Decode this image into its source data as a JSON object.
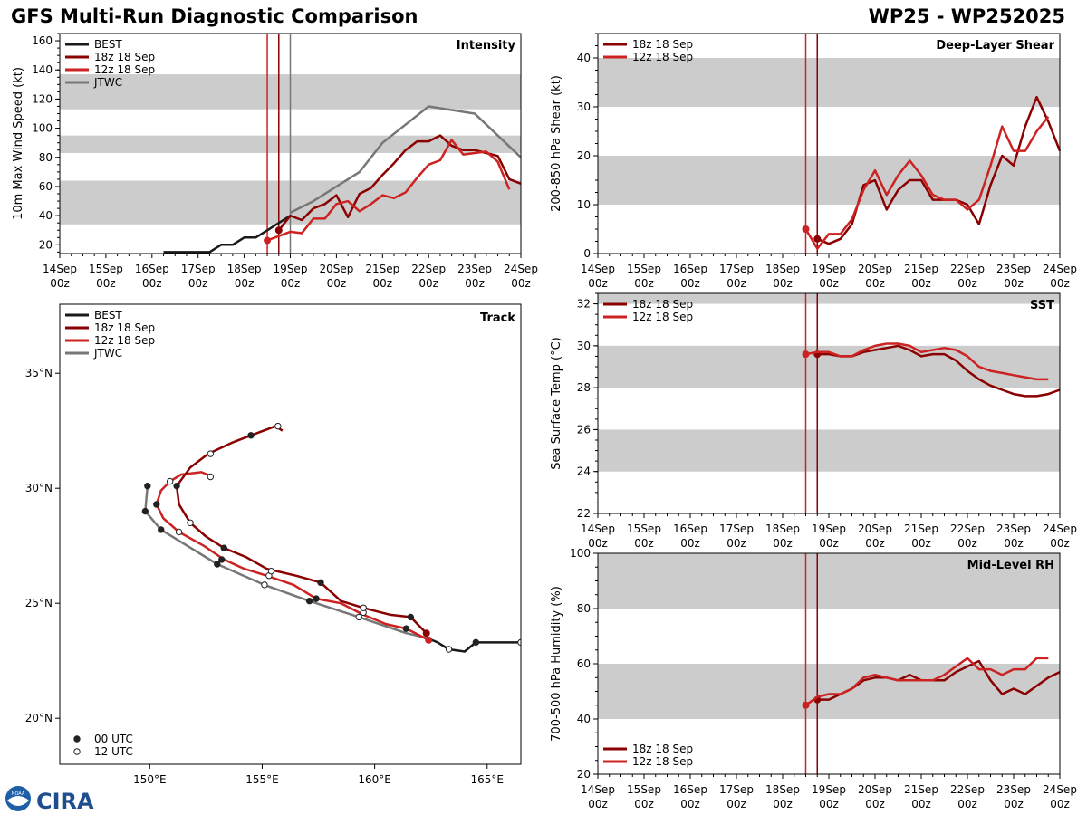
{
  "header": {
    "title": "GFS Multi-Run Diagnostic Comparison",
    "storm": "WP25 - WP252025"
  },
  "logo": {
    "ring_text": "NOAA",
    "wordmark": "CIRA"
  },
  "colors": {
    "best": "#1a1a1a",
    "run18": "#8b0000",
    "run12": "#cc2222",
    "jtwc": "#777777",
    "band": "#cccccc"
  },
  "time_axis": {
    "range": [
      0,
      10
    ],
    "ticks": [
      {
        "day": "14Sep",
        "hour": "00z"
      },
      {
        "day": "15Sep",
        "hour": "00z"
      },
      {
        "day": "16Sep",
        "hour": "00z"
      },
      {
        "day": "17Sep",
        "hour": "00z"
      },
      {
        "day": "18Sep",
        "hour": "00z"
      },
      {
        "day": "19Sep",
        "hour": "00z"
      },
      {
        "day": "20Sep",
        "hour": "00z"
      },
      {
        "day": "21Sep",
        "hour": "00z"
      },
      {
        "day": "22Sep",
        "hour": "00z"
      },
      {
        "day": "23Sep",
        "hour": "00z"
      },
      {
        "day": "24Sep",
        "hour": "00z"
      }
    ]
  },
  "chart_data": [
    {
      "id": "intensity",
      "type": "line",
      "title": "Intensity",
      "ylabel": "10m Max Wind Speed (kt)",
      "ylim": [
        14,
        165
      ],
      "yticks": [
        20,
        40,
        60,
        80,
        100,
        120,
        140,
        160
      ],
      "bands": [
        [
          34,
          64
        ],
        [
          83,
          95
        ],
        [
          113,
          137
        ]
      ],
      "vlines": [
        {
          "x": 4.5,
          "series": "run12"
        },
        {
          "x": 4.75,
          "series": "run18"
        },
        {
          "x": 5.0,
          "series": "jtwc"
        }
      ],
      "legend": [
        "BEST",
        "18z 18 Sep",
        "12z 18 Sep",
        "JTWC"
      ],
      "series": [
        {
          "name": "BEST",
          "key": "best",
          "x": [
            2.25,
            2.5,
            2.75,
            3.0,
            3.25,
            3.5,
            3.75,
            4.0,
            4.25,
            4.5,
            4.75,
            5.0
          ],
          "y": [
            15,
            15,
            15,
            15,
            15,
            20,
            20,
            25,
            25,
            30,
            35,
            40
          ]
        },
        {
          "name": "18z 18 Sep",
          "key": "run18",
          "x": [
            4.75,
            5.0,
            5.25,
            5.5,
            5.75,
            6.0,
            6.25,
            6.5,
            6.75,
            7.0,
            7.25,
            7.5,
            7.75,
            8.0,
            8.25,
            8.5,
            8.75,
            9.0,
            9.25,
            9.5,
            9.75,
            10.0
          ],
          "y": [
            30,
            40,
            37,
            45,
            48,
            54,
            39,
            55,
            59,
            68,
            76,
            85,
            91,
            91,
            95,
            88,
            85,
            85,
            83,
            81,
            65,
            62
          ],
          "marker": 0
        },
        {
          "name": "12z 18 Sep",
          "key": "run12",
          "x": [
            4.5,
            4.75,
            5.0,
            5.25,
            5.5,
            5.75,
            6.0,
            6.25,
            6.5,
            6.75,
            7.0,
            7.25,
            7.5,
            7.75,
            8.0,
            8.25,
            8.5,
            8.75,
            9.0,
            9.25,
            9.5,
            9.75
          ],
          "y": [
            23,
            26,
            29,
            28,
            38,
            38,
            48,
            50,
            43,
            48,
            54,
            52,
            56,
            66,
            75,
            78,
            92,
            82,
            83,
            84,
            77,
            58
          ],
          "marker": 0
        },
        {
          "name": "JTWC",
          "key": "jtwc",
          "x": [
            5.0,
            5.5,
            6.5,
            7.0,
            8.0,
            9.0,
            10.0
          ],
          "y": [
            42,
            50,
            70,
            90,
            115,
            110,
            80
          ]
        }
      ]
    },
    {
      "id": "shear",
      "type": "line",
      "title": "Deep-Layer Shear",
      "ylabel": "200-850 hPa Shear (kt)",
      "ylim": [
        0,
        45
      ],
      "yticks": [
        0,
        10,
        20,
        30,
        40
      ],
      "bands": [
        [
          10,
          20
        ],
        [
          30,
          40
        ]
      ],
      "vlines": [
        {
          "x": 4.5,
          "series": "run12"
        },
        {
          "x": 4.75,
          "series": "run18"
        }
      ],
      "legend": [
        "18z 18 Sep",
        "12z 18 Sep"
      ],
      "series": [
        {
          "name": "18z 18 Sep",
          "key": "run18",
          "x": [
            4.75,
            5.0,
            5.25,
            5.5,
            5.75,
            6.0,
            6.25,
            6.5,
            6.75,
            7.0,
            7.25,
            7.5,
            7.75,
            8.0,
            8.25,
            8.5,
            8.75,
            9.0,
            9.25,
            9.5,
            9.75,
            10.0
          ],
          "y": [
            3,
            2,
            3,
            6,
            14,
            15,
            9,
            13,
            15,
            15,
            11,
            11,
            11,
            10,
            6,
            14,
            20,
            18,
            26,
            32,
            27,
            21
          ],
          "marker": 0
        },
        {
          "name": "12z 18 Sep",
          "key": "run12",
          "x": [
            4.5,
            4.75,
            5.0,
            5.25,
            5.5,
            5.75,
            6.0,
            6.25,
            6.5,
            6.75,
            7.0,
            7.25,
            7.5,
            7.75,
            8.0,
            8.25,
            8.5,
            8.75,
            9.0,
            9.25,
            9.5,
            9.75
          ],
          "y": [
            5,
            1,
            4,
            4,
            7,
            13,
            17,
            12,
            16,
            19,
            16,
            12,
            11,
            11,
            9,
            11,
            18,
            26,
            21,
            21,
            25,
            28
          ],
          "marker": 0
        }
      ]
    },
    {
      "id": "sst",
      "type": "line",
      "title": "SST",
      "ylabel": "Sea Surface Temp (°C)",
      "ylim": [
        22,
        32.5
      ],
      "yticks": [
        22,
        24,
        26,
        28,
        30,
        32
      ],
      "bands": [
        [
          24,
          26
        ],
        [
          28,
          30
        ],
        [
          32,
          32.5
        ]
      ],
      "vlines": [
        {
          "x": 4.5,
          "series": "run12"
        },
        {
          "x": 4.75,
          "series": "run18"
        }
      ],
      "legend": [
        "18z 18 Sep",
        "12z 18 Sep"
      ],
      "series": [
        {
          "name": "18z 18 Sep",
          "key": "run18",
          "x": [
            4.75,
            5.0,
            5.25,
            5.5,
            5.75,
            6.0,
            6.25,
            6.5,
            6.75,
            7.0,
            7.25,
            7.5,
            7.75,
            8.0,
            8.25,
            8.5,
            8.75,
            9.0,
            9.25,
            9.5,
            9.75,
            10.0
          ],
          "y": [
            29.6,
            29.6,
            29.5,
            29.5,
            29.7,
            29.8,
            29.9,
            30.0,
            29.8,
            29.5,
            29.6,
            29.6,
            29.3,
            28.8,
            28.4,
            28.1,
            27.9,
            27.7,
            27.6,
            27.6,
            27.7,
            27.9
          ],
          "marker": 0
        },
        {
          "name": "12z 18 Sep",
          "key": "run12",
          "x": [
            4.5,
            4.75,
            5.0,
            5.25,
            5.5,
            5.75,
            6.0,
            6.25,
            6.5,
            6.75,
            7.0,
            7.25,
            7.5,
            7.75,
            8.0,
            8.25,
            8.5,
            8.75,
            9.0,
            9.25,
            9.5,
            9.75
          ],
          "y": [
            29.6,
            29.7,
            29.7,
            29.5,
            29.5,
            29.8,
            30.0,
            30.1,
            30.1,
            30.0,
            29.7,
            29.8,
            29.9,
            29.8,
            29.5,
            29.0,
            28.8,
            28.7,
            28.6,
            28.5,
            28.4,
            28.4
          ],
          "marker": 0
        }
      ]
    },
    {
      "id": "rh",
      "type": "line",
      "title": "Mid-Level RH",
      "ylabel": "700-500 hPa Humidity (%)",
      "ylim": [
        20,
        100
      ],
      "yticks": [
        20,
        40,
        60,
        80,
        100
      ],
      "bands": [
        [
          40,
          60
        ],
        [
          80,
          100
        ]
      ],
      "vlines": [
        {
          "x": 4.5,
          "series": "run12"
        },
        {
          "x": 4.75,
          "series": "run18"
        }
      ],
      "legend": [
        "18z 18 Sep",
        "12z 18 Sep"
      ],
      "series": [
        {
          "name": "18z 18 Sep",
          "key": "run18",
          "x": [
            4.75,
            5.0,
            5.25,
            5.5,
            5.75,
            6.0,
            6.25,
            6.5,
            6.75,
            7.0,
            7.25,
            7.5,
            7.75,
            8.0,
            8.25,
            8.5,
            8.75,
            9.0,
            9.25,
            9.5,
            9.75,
            10.0
          ],
          "y": [
            47,
            47,
            49,
            51,
            54,
            55,
            55,
            54,
            56,
            54,
            54,
            54,
            57,
            59,
            61,
            54,
            49,
            51,
            49,
            52,
            55,
            57
          ],
          "marker": 0
        },
        {
          "name": "12z 18 Sep",
          "key": "run12",
          "x": [
            4.5,
            4.75,
            5.0,
            5.25,
            5.5,
            5.75,
            6.0,
            6.25,
            6.5,
            6.75,
            7.0,
            7.25,
            7.5,
            7.75,
            8.0,
            8.25,
            8.5,
            8.75,
            9.0,
            9.25,
            9.5,
            9.75
          ],
          "y": [
            45,
            48,
            49,
            49,
            51,
            55,
            56,
            55,
            54,
            54,
            54,
            54,
            56,
            59,
            62,
            58,
            58,
            56,
            58,
            58,
            62,
            62
          ],
          "marker": 0
        }
      ]
    },
    {
      "id": "track",
      "type": "scatter",
      "title": "Track",
      "xlim": [
        146,
        166.5
      ],
      "ylim": [
        18,
        38
      ],
      "xticks": [
        {
          "v": 150,
          "label": "150°E"
        },
        {
          "v": 155,
          "label": "155°E"
        },
        {
          "v": 160,
          "label": "160°E"
        },
        {
          "v": 165,
          "label": "165°E"
        }
      ],
      "yticks": [
        {
          "v": 20,
          "label": "20°N"
        },
        {
          "v": 25,
          "label": "25°N"
        },
        {
          "v": 30,
          "label": "30°N"
        },
        {
          "v": 35,
          "label": "35°N"
        }
      ],
      "legend": [
        "BEST",
        "18z 18 Sep",
        "12z 18 Sep",
        "JTWC"
      ],
      "marker_legend": [
        "00 UTC",
        "12 UTC"
      ],
      "series": [
        {
          "name": "BEST",
          "key": "best",
          "lon": [
            166.5,
            165.5,
            164.5,
            164.0,
            163.3,
            162.8,
            162.3
          ],
          "lat": [
            23.3,
            23.3,
            23.3,
            22.9,
            23.0,
            23.3,
            23.5
          ],
          "markers": [
            {
              "lon": 166.5,
              "lat": 23.3,
              "utc": "12"
            },
            {
              "lon": 164.5,
              "lat": 23.3,
              "utc": "00"
            },
            {
              "lon": 163.3,
              "lat": 23.0,
              "utc": "12"
            }
          ]
        },
        {
          "name": "18z 18 Sep",
          "key": "run18",
          "lon": [
            162.3,
            161.6,
            160.7,
            159.5,
            158.5,
            157.6,
            156.5,
            155.2,
            154.3,
            153.3,
            152.5,
            151.8,
            151.3,
            151.2,
            151.8,
            152.6,
            153.7,
            154.5,
            155.6,
            155.9
          ],
          "lat": [
            23.7,
            24.4,
            24.5,
            24.8,
            25.1,
            25.9,
            26.2,
            26.5,
            27.0,
            27.4,
            27.9,
            28.5,
            29.3,
            30.1,
            30.9,
            31.5,
            32.0,
            32.3,
            32.7,
            32.5
          ],
          "markers": [
            {
              "lon": 161.6,
              "lat": 24.4,
              "utc": "00"
            },
            {
              "lon": 159.5,
              "lat": 24.8,
              "utc": "12"
            },
            {
              "lon": 157.6,
              "lat": 25.9,
              "utc": "00"
            },
            {
              "lon": 155.4,
              "lat": 26.4,
              "utc": "12"
            },
            {
              "lon": 153.3,
              "lat": 27.4,
              "utc": "00"
            },
            {
              "lon": 151.8,
              "lat": 28.5,
              "utc": "12"
            },
            {
              "lon": 151.2,
              "lat": 30.1,
              "utc": "00"
            },
            {
              "lon": 152.7,
              "lat": 31.5,
              "utc": "12"
            },
            {
              "lon": 154.5,
              "lat": 32.3,
              "utc": "00"
            },
            {
              "lon": 155.7,
              "lat": 32.7,
              "utc": "12"
            }
          ]
        },
        {
          "name": "12z 18 Sep",
          "key": "run12",
          "lon": [
            162.4,
            161.4,
            160.5,
            159.5,
            158.5,
            157.4,
            156.4,
            155.2,
            154.2,
            153.3,
            152.4,
            151.3,
            150.6,
            150.3,
            150.5,
            150.9,
            151.4,
            152.3,
            152.8
          ],
          "lat": [
            23.4,
            23.9,
            24.1,
            24.5,
            25.0,
            25.2,
            25.8,
            26.2,
            26.5,
            26.9,
            27.5,
            28.1,
            28.7,
            29.3,
            29.9,
            30.3,
            30.6,
            30.7,
            30.5
          ],
          "markers": [
            {
              "lon": 161.4,
              "lat": 23.9,
              "utc": "00"
            },
            {
              "lon": 159.5,
              "lat": 24.6,
              "utc": "12"
            },
            {
              "lon": 157.4,
              "lat": 25.2,
              "utc": "00"
            },
            {
              "lon": 155.3,
              "lat": 26.2,
              "utc": "12"
            },
            {
              "lon": 153.2,
              "lat": 26.9,
              "utc": "00"
            },
            {
              "lon": 151.3,
              "lat": 28.1,
              "utc": "12"
            },
            {
              "lon": 150.3,
              "lat": 29.3,
              "utc": "00"
            },
            {
              "lon": 150.9,
              "lat": 30.3,
              "utc": "12"
            },
            {
              "lon": 152.7,
              "lat": 30.5,
              "utc": "12"
            }
          ]
        },
        {
          "name": "JTWC",
          "key": "jtwc",
          "lon": [
            162.3,
            161.4,
            159.3,
            157.1,
            155.1,
            153.0,
            150.5,
            149.8,
            149.9
          ],
          "lat": [
            23.5,
            23.7,
            24.4,
            25.1,
            25.8,
            26.7,
            28.2,
            29.0,
            30.1
          ],
          "markers": [
            {
              "lon": 159.3,
              "lat": 24.4,
              "utc": "12"
            },
            {
              "lon": 157.1,
              "lat": 25.1,
              "utc": "00"
            },
            {
              "lon": 155.1,
              "lat": 25.8,
              "utc": "12"
            },
            {
              "lon": 153.0,
              "lat": 26.7,
              "utc": "00"
            },
            {
              "lon": 150.5,
              "lat": 28.2,
              "utc": "00"
            },
            {
              "lon": 149.8,
              "lat": 29.0,
              "utc": "00"
            },
            {
              "lon": 149.9,
              "lat": 30.1,
              "utc": "00"
            }
          ]
        }
      ]
    }
  ]
}
